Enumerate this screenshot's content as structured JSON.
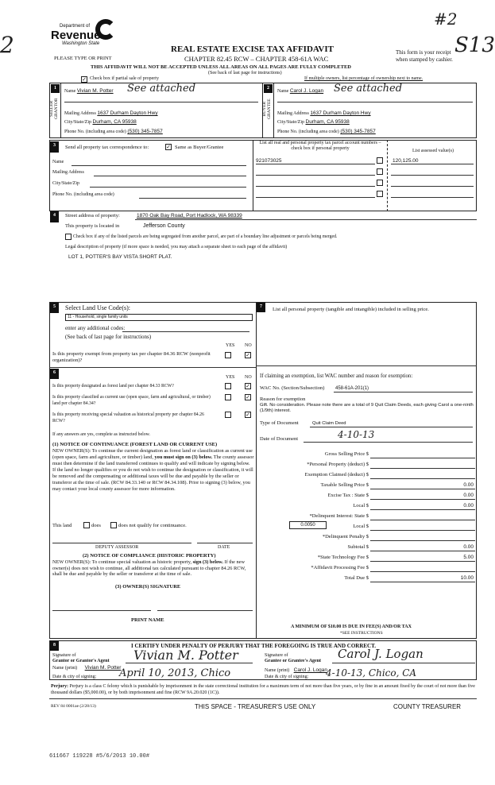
{
  "logo": {
    "line1": "Department of",
    "line2": "Revenue",
    "line3": "Washington State"
  },
  "annotations": {
    "top_right": "#2",
    "top_right2": "S13",
    "left_mark": "2"
  },
  "header": {
    "title": "REAL ESTATE EXCISE TAX AFFIDAVIT",
    "chapter": "CHAPTER 82.45 RCW – CHAPTER 458-61A WAC",
    "warning": "THIS AFFIDAVIT WILL NOT BE ACCEPTED UNLESS ALL AREAS ON ALL PAGES ARE FULLY COMPLETED",
    "see_back": "(See back of last page for instructions)",
    "please": "PLEASE TYPE OR PRINT",
    "receipt1": "This form is your receipt",
    "receipt2": "when stamped by cashier."
  },
  "partial_sale": {
    "label": "Check box if partial sale of property",
    "checked": true
  },
  "multiple_owners": "If multiple owners, list percentage of ownership next to name.",
  "seller": {
    "num": "1",
    "side1": "SELLER",
    "side2": "GRANTOR",
    "name_label": "Name",
    "name": "Vivian M. Potter",
    "handwritten": "See attached",
    "address_label": "Mailing Address",
    "address": "1637 Durham Dayton Hwy",
    "city_label": "City/State/Zip",
    "city": "Durham, CA 95938",
    "phone_label": "Phone No. (including area code)",
    "phone": "(530) 345-7857"
  },
  "buyer": {
    "num": "2",
    "side1": "BUYER",
    "side2": "GRANTEE",
    "name_label": "Name",
    "name": "Carol J. Logan",
    "handwritten": "See attached",
    "address_label": "Mailing Address",
    "address": "1637 Durham Dayton Hwy",
    "city_label": "City/State/Zip",
    "city": "Durham, CA 95938",
    "phone_label": "Phone No. (including area code)",
    "phone": "(530) 345-7857"
  },
  "sec3": {
    "num": "3",
    "send_label": "Send all property tax correspondence to:",
    "same_label": "Same as Buyer/Grantee",
    "same_checked": true,
    "name": "Name",
    "address": "Mailing Address",
    "city": "City/State/Zip",
    "phone": "Phone No. (including area code)",
    "parcel_header": "List all real and personal property tax parcel account numbers – check box if personal property",
    "value_header": "List assessed value(s)",
    "parcels": [
      "921073025",
      "",
      "",
      ""
    ],
    "values": [
      "120,125.00",
      "",
      "",
      ""
    ]
  },
  "sec4": {
    "num": "4",
    "street_label": "Street address of property:",
    "street": "1870 Oak Bay Road, Port Hadlock, WA 98339",
    "located_label": "This property is located in",
    "county": "Jefferson County",
    "segregated": "Check box if any of the listed parcels are being segregated from another parcel, are part of a boundary line adjustment or parcels being merged.",
    "legal_label": "Legal description of property (if more space is needed, you may attach a separate sheet to each page of the affidavit)",
    "legal": "LOT 1, POTTER'S BAY VISTA SHORT PLAT."
  },
  "sec5": {
    "num": "5",
    "title": "Select Land Use Code(s):",
    "code": "11 - Household, single family units",
    "additional": "enter any additional codes:",
    "see_back": "(See back of last page for instructions)",
    "yes": "YES",
    "no": "NO",
    "exempt_q": "Is this property exempt from property tax per chapter 84.36 RCW (nonprofit organization)?",
    "exempt_answer": "NO"
  },
  "sec6": {
    "num": "6",
    "yes": "YES",
    "no": "NO",
    "questions": [
      {
        "q": "Is this property designated as forest land per chapter 84.33 RCW?",
        "answer": "NO"
      },
      {
        "q": "Is this property classified as current use (open space, farm and agricultural, or timber) land per chapter 84.34?",
        "answer": "NO"
      },
      {
        "q": "Is this property receiving special valuation as historical property per chapter 84.26 RCW?",
        "answer": "NO"
      }
    ],
    "if_yes": "If any answers are yes, complete as instructed below.",
    "notice1_title": "(1) NOTICE OF CONTINUANCE (FOREST LAND OR CURRENT USE)",
    "notice1_a": "NEW OWNER(S): To continue the current designation as forest land or classification as current use (open space, farm and agriculture, or timber) land,",
    "notice1_bold": "you must sign on (3) below.",
    "notice1_b": "The county assessor must then determine if the land transferred continues to qualify and will indicate by signing below. If the land no longer qualifies or you do not wish to continue the designation or classification, it will be removed and the compensating or additional taxes will be due and payable by the seller or transferor at the time of sale. (RCW 84.33.140 or RCW 84.34.108). Prior to signing (3) below, you may contact your local county assessor for more information.",
    "this_land": "This land",
    "does": "does",
    "does_not": "does not qualify for continuance.",
    "deputy": "DEPUTY ASSESSOR",
    "date": "DATE",
    "notice2_title": "(2) NOTICE OF COMPLIANCE (HISTORIC PROPERTY)",
    "notice2_a": "NEW OWNER(S): To continue special valuation as historic property,",
    "notice2_bold": "sign (3) below.",
    "notice2_b": "If the new owner(s) does not wish to continue, all additional tax calculated pursuant to chapter 84.26 RCW, shall be due and payable by the seller or transferor at the time of sale.",
    "owner_sig": "(3) OWNER(S) SIGNATURE",
    "print_name": "PRINT NAME"
  },
  "sec7": {
    "num": "7",
    "personal": "List all personal property (tangible and intangible) included in selling price.",
    "exemption_label": "If claiming an exemption, list WAC number and reason for exemption:",
    "wac_label": "WAC No. (Section/Subsection)",
    "wac": "458-61A-201(1)",
    "reason_label": "Reason for exemption",
    "reason": "Gift. No consideration. Please note there are a total of 9 Quit Claim Deeds, each giving Carol a one-ninth (1/9th) interest.",
    "doc_type_label": "Type of Document",
    "doc_type": "Quit Claim Deed",
    "doc_date_label": "Date of Document",
    "doc_date": "4-10-13",
    "rate": "0.0050",
    "lines": [
      {
        "label": "Gross Selling Price $",
        "value": ""
      },
      {
        "label": "*Personal Property (deduct) $",
        "value": ""
      },
      {
        "label": "Exemption Claimed (deduct) $",
        "value": ""
      },
      {
        "label": "Taxable Selling Price $",
        "value": "0.00"
      },
      {
        "label": "Excise Tax : State $",
        "value": "0.00"
      },
      {
        "label": "Local $",
        "value": "0.00"
      },
      {
        "label": "*Delinquent Interest: State $",
        "value": ""
      },
      {
        "label": "Local $",
        "value": ""
      },
      {
        "label": "*Delinquent Penalty $",
        "value": ""
      },
      {
        "label": "Subtotal $",
        "value": "0.00"
      },
      {
        "label": "*State Technology Fee $",
        "value": "5.00"
      },
      {
        "label": "*Affidavit Processing Fee $",
        "value": ""
      },
      {
        "label": "Total Due $",
        "value": "10.00"
      }
    ],
    "minimum": "A MINIMUM OF $10.00 IS DUE IN FEE(S) AND/OR TAX",
    "see_inst": "*SEE INSTRUCTIONS"
  },
  "sec8": {
    "num": "8",
    "certify": "I CERTIFY UNDER PENALTY OF PERJURY THAT THE FOREGOING IS TRUE AND CORRECT.",
    "grantor_sig_label1": "Signature of",
    "grantor_sig_label2": "Grantor or Grantor's Agent",
    "grantor_sig": "Vivian M. Potter",
    "grantor_name_label": "Name (print)",
    "grantor_name": "Vivian M. Potter",
    "grantor_date_label": "Date & city of signing:",
    "grantor_date": "April 10, 2013, Chico",
    "grantee_sig_label1": "Signature of",
    "grantee_sig_label2": "Grantee or Grantee's Agent",
    "grantee_sig": "Carol J. Logan",
    "grantee_name_label": "Name (print)",
    "grantee_name": "Carol J. Logan",
    "grantee_date_label": "Date & city of signing:",
    "grantee_date": "4-10-13, Chico, CA"
  },
  "perjury": {
    "label": "Perjury:",
    "text": "Perjury is a class C felony which is punishable by imprisonment in the state correctional institution for a maximum term of not more than five years, or by fine in an amount fixed by the court of not more than five thousand dollars ($5,000.00), or by both imprisonment and fine (RCW 9A.20.020 (1C))."
  },
  "footer": {
    "rev": "REV 84 0001ae (2/28/13)",
    "treasurer_use": "THIS SPACE - TREASURER'S USE ONLY",
    "county_treasurer": "COUNTY TREASURER",
    "stamp": "611667 119228 #5/6/2013 10.00#"
  }
}
